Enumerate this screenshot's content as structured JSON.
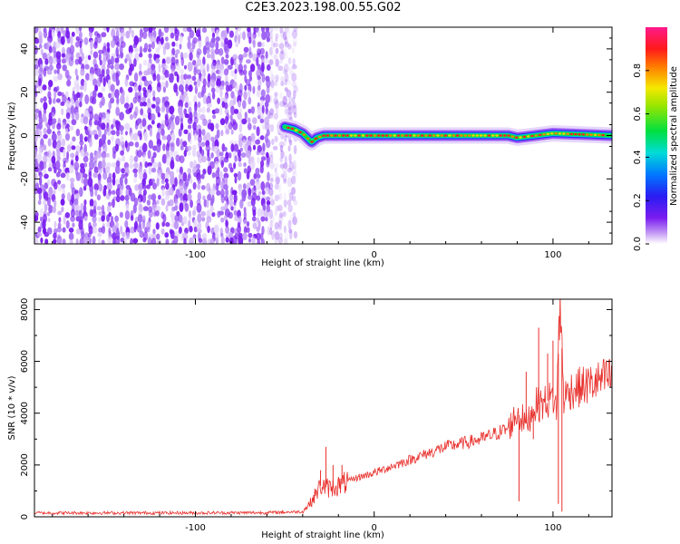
{
  "title": "C2E3.2023.198.00.55.G02",
  "colors": {
    "line": "#e8302c",
    "purple": "#7a1df0",
    "light_purple": "#c8a4f6",
    "axis": "#000000"
  },
  "chart_data": [
    {
      "type": "heatmap",
      "xlabel": "Height of straight line (km)",
      "ylabel": "Frequency (Hz)",
      "xlim": [
        -190,
        133
      ],
      "ylim": [
        -50,
        50
      ],
      "xticks": [
        -100,
        0,
        100
      ],
      "xtick_labels": [
        "-100",
        "0",
        "100"
      ],
      "yticks": [
        -40,
        -20,
        0,
        20,
        40
      ],
      "ytick_labels": [
        "-40",
        "-20",
        "0",
        "20",
        "40"
      ],
      "colorbar": {
        "label": "Normalized spectral amplitude",
        "range": [
          0,
          1
        ],
        "ticks": [
          0,
          0.2,
          0.4,
          0.6,
          0.8
        ],
        "tick_labels": [
          "0.0",
          "0.2",
          "0.4",
          "0.6",
          "0.8"
        ],
        "colormap": "rainbow (white-purple-blue-cyan-green-yellow-red-magenta)"
      },
      "noise_region_x": [
        -190,
        -48
      ],
      "signal_line": {
        "x": [
          -50,
          -45,
          -40,
          -35,
          -32,
          -28,
          -20,
          -10,
          0,
          20,
          50,
          75,
          80,
          90,
          100,
          133
        ],
        "frequency_hz": [
          4,
          3,
          1,
          -3,
          -1,
          0,
          0,
          0,
          0,
          0,
          0,
          0,
          -1,
          0,
          1,
          0
        ]
      },
      "grid": false
    },
    {
      "type": "line",
      "xlabel": "Height of straight line (km)",
      "ylabel": "SNR (10 * v/v)",
      "xlim": [
        -190,
        133
      ],
      "ylim": [
        0,
        8400
      ],
      "xticks": [
        -100,
        0,
        100
      ],
      "xtick_labels": [
        "-100",
        "0",
        "100"
      ],
      "yticks": [
        0,
        2000,
        4000,
        6000,
        8000
      ],
      "ytick_labels": [
        "0",
        "2000",
        "4000",
        "6000",
        "8000"
      ],
      "series": [
        {
          "x": [
            -190,
            -150,
            -100,
            -60,
            -40,
            -35,
            -30,
            -25,
            -20,
            -10,
            0,
            20,
            40,
            60,
            75,
            80,
            85,
            90,
            95,
            100,
            102,
            104,
            106,
            110,
            120,
            133
          ],
          "y": [
            150,
            150,
            150,
            160,
            200,
            600,
            1200,
            1100,
            1200,
            1500,
            1700,
            2200,
            2700,
            3000,
            3400,
            4000,
            3600,
            4300,
            4400,
            4600,
            4200,
            8400,
            4600,
            4900,
            5100,
            5400
          ]
        }
      ],
      "spikes": [
        {
          "x": -30,
          "y": 1800
        },
        {
          "x": -27,
          "y": 2700
        },
        {
          "x": -23,
          "y": 2000
        },
        {
          "x": -18,
          "y": 2000
        },
        {
          "x": 81,
          "y": 600
        },
        {
          "x": 85,
          "y": 5600
        },
        {
          "x": 89,
          "y": 3000
        },
        {
          "x": 92,
          "y": 7300
        },
        {
          "x": 97,
          "y": 6300
        },
        {
          "x": 100,
          "y": 6800
        },
        {
          "x": 103,
          "y": 500
        },
        {
          "x": 104,
          "y": 8400
        },
        {
          "x": 105,
          "y": 200
        }
      ],
      "grid": false
    }
  ]
}
